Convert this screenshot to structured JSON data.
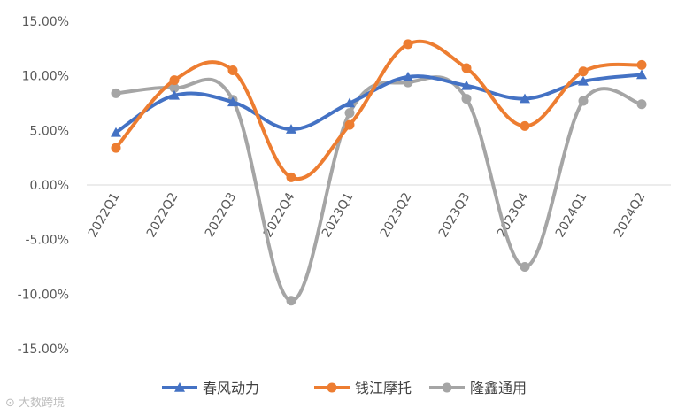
{
  "chart_data": {
    "type": "line",
    "categories": [
      "2022Q1",
      "2022Q2",
      "2022Q3",
      "2022Q4",
      "2023Q1",
      "2023Q2",
      "2023Q3",
      "2023Q4",
      "2024Q1",
      "2024Q2"
    ],
    "series": [
      {
        "name": "春风动力",
        "color": "#4472C4",
        "marker": "triangle",
        "values": [
          4.8,
          8.2,
          7.6,
          5.1,
          7.5,
          9.9,
          9.1,
          7.9,
          9.5,
          10.1
        ]
      },
      {
        "name": "钱江摩托",
        "color": "#ED7D31",
        "marker": "circle",
        "values": [
          3.4,
          9.6,
          10.5,
          0.7,
          5.5,
          12.9,
          10.7,
          5.4,
          10.4,
          11.0
        ]
      },
      {
        "name": "隆鑫通用",
        "color": "#A5A5A5",
        "marker": "circle",
        "values": [
          8.4,
          8.9,
          7.8,
          -10.6,
          6.6,
          9.4,
          7.9,
          -7.5,
          7.7,
          7.4
        ]
      }
    ],
    "yticks": [
      "15.00%",
      "10.00%",
      "5.00%",
      "0.00%",
      "-5.00%",
      "-10.00%",
      "-15.00%"
    ],
    "ylim": [
      -15,
      15
    ],
    "smooth": true,
    "grid": false,
    "legend": "bottom"
  },
  "watermark": "⊙ 大数跨境"
}
